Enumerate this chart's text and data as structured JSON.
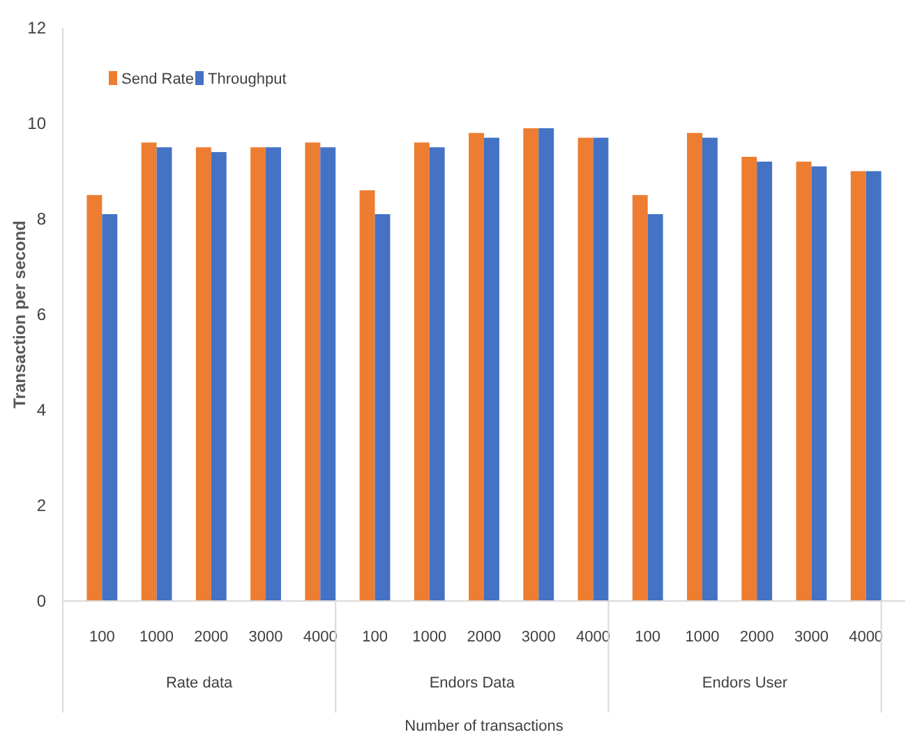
{
  "chart_data": {
    "type": "bar",
    "xlabel": "Number of transactions",
    "ylabel": "Transaction per second",
    "categories": [
      "100",
      "1000",
      "2000",
      "3000",
      "4000",
      "100",
      "1000",
      "2000",
      "3000",
      "4000",
      "100",
      "1000",
      "2000",
      "3000",
      "4000"
    ],
    "annotations": [
      "Rate data",
      "Endors Data",
      "Endors User"
    ],
    "series": [
      {
        "name": "Send Rate",
        "color": "#ed7d31",
        "values": [
          8.5,
          9.6,
          9.5,
          9.5,
          9.6,
          8.6,
          9.6,
          9.8,
          9.9,
          9.7,
          8.5,
          9.8,
          9.3,
          9.2,
          9.0
        ]
      },
      {
        "name": "Throughput",
        "color": "#4472c4",
        "values": [
          8.1,
          9.5,
          9.4,
          9.5,
          9.5,
          8.1,
          9.5,
          9.7,
          9.9,
          9.7,
          8.1,
          9.7,
          9.2,
          9.1,
          9.0
        ]
      }
    ],
    "ylim": [
      0,
      12
    ],
    "yticks": [
      0,
      2,
      4,
      6,
      8,
      10,
      12
    ],
    "grid": false,
    "legend": "top left"
  }
}
